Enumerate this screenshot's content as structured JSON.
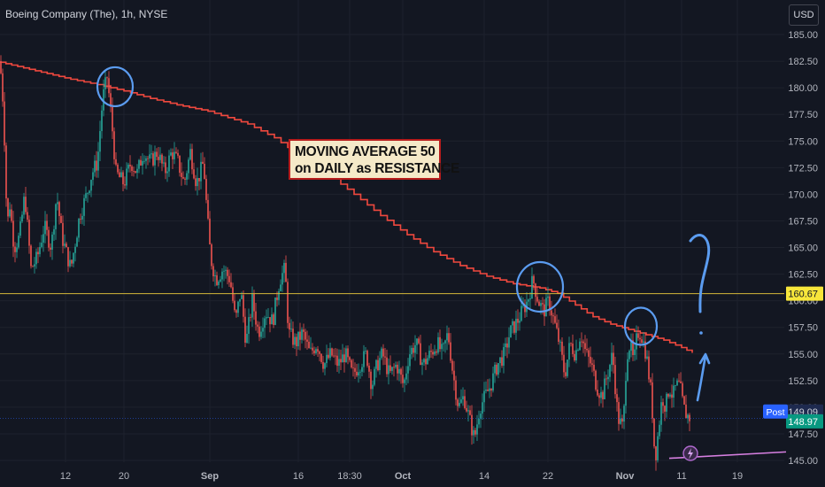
{
  "header": {
    "symbol": "Boeing Company (The), 1h, NYSE",
    "currency": "USD"
  },
  "annotation": {
    "line1": "MOVING AVERAGE 50",
    "line2": "on DAILY as RESISTANCE"
  },
  "colors": {
    "background": "#131722",
    "up": "#26a69a",
    "down": "#ef5350",
    "moving_average": "#f0483e",
    "price_line": "#d4b93a",
    "post_badge": "#2962ff",
    "last_badge": "#089981",
    "drawing": "#5b9cf0",
    "trendline": "#d67fe0"
  },
  "chart_data": {
    "type": "candlestick",
    "symbol": "Boeing Company (The)",
    "interval": "1h",
    "exchange": "NYSE",
    "y_axis": {
      "range": [
        144.5,
        186.2
      ],
      "ticks": [
        145,
        147.5,
        150,
        152.5,
        155,
        157.5,
        160,
        162.5,
        165,
        167.5,
        170,
        172.5,
        175,
        177.5,
        180,
        182.5,
        185
      ],
      "tick_labels": [
        "145.00",
        "147.50",
        "150.00",
        "152.50",
        "155.00",
        "157.50",
        "160.00",
        "162.50",
        "165.00",
        "167.50",
        "170.00",
        "172.50",
        "175.00",
        "177.50",
        "180.00",
        "182.50",
        "185.00"
      ]
    },
    "x_axis": {
      "tick_labels": [
        "12",
        "20",
        "Sep",
        "16",
        "18:30",
        "Oct",
        "14",
        "22",
        "Nov",
        "11",
        "19"
      ],
      "bold_labels": [
        "Sep",
        "Oct",
        "Nov"
      ]
    },
    "price_ohlc_path": [
      [
        0,
        182.5
      ],
      [
        4,
        178
      ],
      [
        8,
        167
      ],
      [
        11,
        169
      ],
      [
        16,
        165
      ],
      [
        22,
        166
      ],
      [
        28,
        170
      ],
      [
        35,
        163
      ],
      [
        42,
        164
      ],
      [
        50,
        167
      ],
      [
        58,
        165
      ],
      [
        64,
        170
      ],
      [
        70,
        166
      ],
      [
        80,
        163
      ],
      [
        90,
        168
      ],
      [
        98,
        170
      ],
      [
        104,
        172
      ],
      [
        110,
        173
      ],
      [
        116,
        179
      ],
      [
        121,
        181
      ],
      [
        126,
        177
      ],
      [
        131,
        172
      ],
      [
        140,
        171
      ],
      [
        148,
        173
      ],
      [
        155,
        172
      ],
      [
        162,
        174
      ],
      [
        170,
        173
      ],
      [
        178,
        174
      ],
      [
        186,
        172
      ],
      [
        194,
        174
      ],
      [
        201,
        173
      ],
      [
        208,
        171
      ],
      [
        215,
        174
      ],
      [
        222,
        171
      ],
      [
        230,
        173
      ],
      [
        234,
        168
      ],
      [
        238,
        164
      ],
      [
        244,
        162
      ],
      [
        252,
        163
      ],
      [
        260,
        162
      ],
      [
        266,
        158
      ],
      [
        272,
        161
      ],
      [
        278,
        156
      ],
      [
        285,
        160
      ],
      [
        292,
        157
      ],
      [
        300,
        159
      ],
      [
        308,
        158
      ],
      [
        316,
        162
      ],
      [
        322,
        163
      ],
      [
        326,
        157
      ],
      [
        334,
        156
      ],
      [
        342,
        157
      ],
      [
        350,
        155
      ],
      [
        358,
        156
      ],
      [
        366,
        154
      ],
      [
        374,
        155
      ],
      [
        382,
        154
      ],
      [
        390,
        155
      ],
      [
        398,
        153
      ],
      [
        406,
        154
      ],
      [
        414,
        155
      ],
      [
        420,
        152
      ],
      [
        426,
        154
      ],
      [
        432,
        155
      ],
      [
        440,
        153
      ],
      [
        448,
        154
      ],
      [
        456,
        152
      ],
      [
        462,
        155
      ],
      [
        470,
        156
      ],
      [
        478,
        154
      ],
      [
        486,
        155
      ],
      [
        494,
        156
      ],
      [
        500,
        155
      ],
      [
        506,
        157
      ],
      [
        512,
        153
      ],
      [
        518,
        150
      ],
      [
        524,
        151
      ],
      [
        530,
        149
      ],
      [
        536,
        147
      ],
      [
        542,
        150
      ],
      [
        548,
        151
      ],
      [
        554,
        152
      ],
      [
        562,
        154
      ],
      [
        570,
        155
      ],
      [
        576,
        157
      ],
      [
        584,
        158
      ],
      [
        590,
        159
      ],
      [
        596,
        160
      ],
      [
        602,
        162
      ],
      [
        608,
        160
      ],
      [
        614,
        159
      ],
      [
        620,
        160
      ],
      [
        626,
        158
      ],
      [
        632,
        156
      ],
      [
        638,
        153
      ],
      [
        644,
        156
      ],
      [
        650,
        155
      ],
      [
        656,
        157
      ],
      [
        662,
        155
      ],
      [
        668,
        154
      ],
      [
        674,
        152
      ],
      [
        680,
        151
      ],
      [
        686,
        153
      ],
      [
        692,
        155
      ],
      [
        698,
        149
      ],
      [
        704,
        148
      ],
      [
        708,
        155
      ],
      [
        712,
        156
      ],
      [
        716,
        154
      ],
      [
        720,
        157
      ],
      [
        724,
        157
      ],
      [
        730,
        155
      ],
      [
        736,
        151
      ],
      [
        740,
        145
      ],
      [
        744,
        148
      ],
      [
        748,
        151
      ],
      [
        752,
        150
      ],
      [
        756,
        152
      ],
      [
        760,
        151
      ],
      [
        764,
        152
      ],
      [
        768,
        152
      ],
      [
        772,
        150
      ],
      [
        776,
        149.2
      ],
      [
        780,
        149
      ]
    ],
    "series": [
      {
        "name": "",
        "type": "moving-average-step",
        "points": [
          [
            0,
            182.4
          ],
          [
            40,
            181.6
          ],
          [
            80,
            180.8
          ],
          [
            110,
            180.3
          ],
          [
            140,
            179.7
          ],
          [
            170,
            179.0
          ],
          [
            200,
            178.4
          ],
          [
            235,
            177.8
          ],
          [
            250,
            177.4
          ],
          [
            280,
            176.6
          ],
          [
            310,
            175.3
          ],
          [
            340,
            173.5
          ],
          [
            370,
            171.9
          ],
          [
            400,
            170.0
          ],
          [
            430,
            168.0
          ],
          [
            460,
            166.2
          ],
          [
            490,
            164.6
          ],
          [
            520,
            163.3
          ],
          [
            550,
            162.3
          ],
          [
            580,
            161.6
          ],
          [
            610,
            161.2
          ],
          [
            630,
            160.7
          ],
          [
            650,
            159.6
          ],
          [
            670,
            158.5
          ],
          [
            690,
            157.8
          ],
          [
            710,
            157.3
          ],
          [
            730,
            156.8
          ],
          [
            750,
            156.3
          ],
          [
            770,
            155.6
          ],
          [
            782,
            155.1
          ]
        ]
      }
    ],
    "levels": [
      {
        "label": "160.67",
        "value": 160.67
      },
      {
        "label": "149.09",
        "value": 149.09,
        "badge": "Post"
      },
      {
        "label": "148.97",
        "value": 148.97
      }
    ],
    "trendline": {
      "from": [
        756,
        145.2
      ],
      "to": [
        888,
        145.8
      ]
    },
    "circles": [
      {
        "center": [
          130,
          180.1
        ],
        "rx": 20,
        "ry": 22
      },
      {
        "center": [
          610,
          161.3
        ],
        "rx": 26,
        "ry": 28
      },
      {
        "center": [
          724,
          157.6
        ],
        "rx": 18,
        "ry": 21
      }
    ]
  },
  "post_label": "Post"
}
